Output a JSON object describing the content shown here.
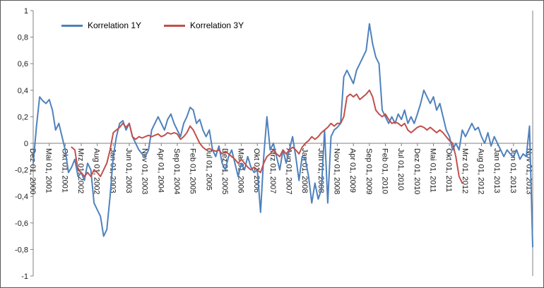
{
  "chart_data": {
    "type": "line",
    "title": "",
    "legend_position": "top",
    "grid": false,
    "axis_color": "#808080",
    "text_color": "#1a1a1a",
    "ylim": [
      -1,
      1
    ],
    "y_ticks": [
      1,
      0.8,
      0.6,
      0.4,
      0.2,
      0,
      -0.2,
      -0.4,
      -0.6,
      -0.8,
      -1
    ],
    "y_tick_labels": [
      "1",
      "0,8",
      "0,6",
      "0,4",
      "0,2",
      "0",
      "-0,2",
      "-0,4",
      "-0,6",
      "-0,8",
      "-1"
    ],
    "x_unit": "monthly",
    "x_tick_interval": 5,
    "x_tick_labels": [
      "Dez 01, 2000",
      "Mai 01, 2001",
      "Okt 01, 2001",
      "Mrz 01, 2002",
      "Aug 01, 2002",
      "Jan 01, 2003",
      "Jun 01, 2003",
      "Nov 01, 2003",
      "Apr 01, 2004",
      "Sep 01, 2004",
      "Feb 01, 2005",
      "Jul 01, 2005",
      "Dez 01, 2005",
      "Mai 01, 2006",
      "Okt 01, 2006",
      "Mrz 01, 2007",
      "Aug 01, 2007",
      "Jan 01, 2008",
      "Jun 01, 2008",
      "Nov 01, 2008",
      "Apr 01, 2009",
      "Sep 01, 2009",
      "Feb 01, 2010",
      "Jul 01, 2010",
      "Dez 01, 2010",
      "Mai 01, 2011",
      "Okt 01, 2011",
      "Mrz 01, 2012",
      "Aug 01, 2012",
      "Jan 01, 2013",
      "Jun 01, 2013",
      "Nov 01, 2013"
    ],
    "series": [
      {
        "name": "Korrelation 1Y",
        "color": "#4F81BD",
        "values": [
          -0.15,
          0.12,
          0.35,
          0.32,
          0.3,
          0.33,
          0.25,
          0.1,
          0.15,
          0.05,
          -0.05,
          -0.22,
          -0.18,
          -0.12,
          -0.25,
          -0.22,
          -0.28,
          -0.15,
          -0.2,
          -0.45,
          -0.5,
          -0.55,
          -0.7,
          -0.65,
          -0.4,
          -0.1,
          0.05,
          0.15,
          0.17,
          0.1,
          0.15,
          0.05,
          0.0,
          -0.05,
          -0.08,
          -0.1,
          -0.05,
          0.1,
          0.15,
          0.2,
          0.15,
          0.1,
          0.18,
          0.22,
          0.15,
          0.1,
          0.05,
          0.15,
          0.2,
          0.27,
          0.25,
          0.15,
          0.18,
          0.1,
          0.05,
          0.1,
          -0.05,
          -0.1,
          -0.02,
          -0.15,
          -0.2,
          -0.1,
          -0.05,
          -0.15,
          -0.25,
          -0.15,
          -0.2,
          -0.1,
          -0.18,
          -0.22,
          -0.2,
          -0.52,
          -0.1,
          0.2,
          -0.05,
          0.0,
          -0.1,
          -0.2,
          -0.05,
          -0.15,
          -0.05,
          0.05,
          -0.1,
          -0.28,
          -0.1,
          -0.12,
          -0.25,
          -0.45,
          -0.3,
          -0.42,
          -0.35,
          0.1,
          -0.45,
          0.05,
          0.1,
          0.12,
          0.15,
          0.5,
          0.55,
          0.5,
          0.45,
          0.55,
          0.6,
          0.65,
          0.7,
          0.9,
          0.75,
          0.65,
          0.6,
          0.25,
          0.2,
          0.15,
          0.2,
          0.15,
          0.22,
          0.18,
          0.25,
          0.15,
          0.2,
          0.15,
          0.22,
          0.3,
          0.4,
          0.35,
          0.3,
          0.35,
          0.25,
          0.3,
          0.2,
          0.1,
          0.05,
          -0.05,
          0.0,
          -0.05,
          0.1,
          0.05,
          0.1,
          0.15,
          0.1,
          0.12,
          0.05,
          0.0,
          0.08,
          -0.02,
          0.05,
          0.0,
          -0.05,
          -0.1,
          -0.05,
          -0.08,
          -0.1,
          -0.05,
          -0.12,
          -0.08,
          -0.1,
          0.13,
          -0.78
        ]
      },
      {
        "name": "Korrelation 3Y",
        "color": "#C0504D",
        "values": [
          null,
          null,
          null,
          null,
          null,
          null,
          null,
          null,
          null,
          null,
          null,
          null,
          -0.03,
          -0.05,
          -0.2,
          -0.22,
          -0.25,
          -0.22,
          -0.25,
          -0.2,
          -0.22,
          -0.25,
          -0.2,
          -0.15,
          -0.05,
          0.08,
          0.1,
          0.12,
          0.15,
          0.12,
          0.15,
          0.05,
          0.03,
          0.05,
          0.04,
          0.05,
          0.06,
          0.05,
          0.06,
          0.07,
          0.05,
          0.06,
          0.08,
          0.07,
          0.08,
          0.07,
          0.03,
          0.05,
          0.08,
          0.13,
          0.1,
          0.05,
          0.0,
          -0.03,
          -0.05,
          -0.04,
          -0.05,
          -0.06,
          -0.05,
          -0.08,
          -0.06,
          -0.08,
          -0.1,
          -0.12,
          -0.15,
          -0.12,
          -0.15,
          -0.18,
          -0.2,
          -0.18,
          -0.2,
          -0.22,
          -0.15,
          -0.1,
          -0.08,
          -0.05,
          -0.08,
          -0.1,
          -0.05,
          -0.08,
          -0.05,
          -0.03,
          -0.05,
          -0.08,
          -0.03,
          0.0,
          0.02,
          0.05,
          0.03,
          0.05,
          0.08,
          0.1,
          0.12,
          0.15,
          0.13,
          0.15,
          0.15,
          0.2,
          0.35,
          0.37,
          0.35,
          0.37,
          0.33,
          0.35,
          0.37,
          0.4,
          0.35,
          0.25,
          0.22,
          0.2,
          0.22,
          0.18,
          0.15,
          0.16,
          0.15,
          0.13,
          0.15,
          0.1,
          0.08,
          0.1,
          0.12,
          0.13,
          0.12,
          0.1,
          0.12,
          0.1,
          0.08,
          0.1,
          0.08,
          0.05,
          0.02,
          0.0,
          -0.1,
          -0.25,
          -0.3,
          null,
          null,
          null,
          null,
          null,
          null,
          null,
          null,
          null,
          null,
          null,
          null,
          null,
          null,
          null,
          null,
          null,
          null,
          null,
          null,
          null,
          null
        ]
      }
    ]
  }
}
